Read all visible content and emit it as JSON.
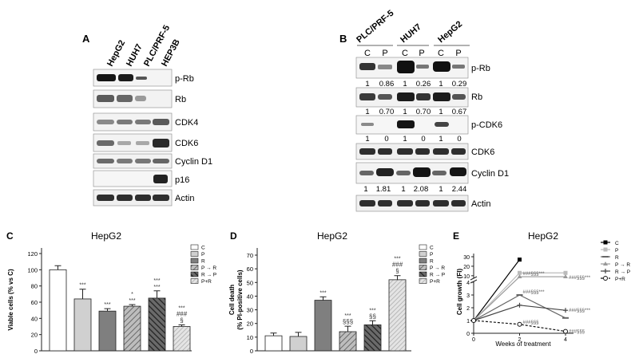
{
  "panel_a": {
    "letter": "A",
    "lanes": [
      "HepG2",
      "HUH7",
      "PLC/PRF-5",
      "HEP3B"
    ],
    "rows": [
      "p-Rb",
      "Rb",
      "CDK4",
      "CDK6",
      "Cyclin D1",
      "p16",
      "Actin"
    ]
  },
  "panel_b": {
    "letter": "B",
    "cell_lines": [
      "PLC/PRF-5",
      "HUH7",
      "HepG2"
    ],
    "lane_labels": [
      "C",
      "P",
      "C",
      "P",
      "C",
      "P"
    ],
    "rows": [
      "p-Rb",
      "Rb",
      "p-CDK6",
      "CDK6",
      "Cyclin D1",
      "Actin"
    ],
    "quant": {
      "p-Rb": [
        "1",
        "0.86",
        "1",
        "0.26",
        "1",
        "0.29"
      ],
      "Rb": [
        "1",
        "0.70",
        "1",
        "0.70",
        "1",
        "0.67"
      ],
      "p-CDK6": [
        "1",
        "0",
        "1",
        "0",
        "1",
        "0"
      ],
      "Cyclin D1": [
        "1",
        "1.81",
        "1",
        "2.08",
        "1",
        "2.44"
      ]
    }
  },
  "legend_items": [
    "C",
    "P",
    "R",
    "P → R",
    "R → P",
    "P+R"
  ],
  "colors": {
    "C": "#ffffff",
    "P": "#d0d0d0",
    "R": "#7f7f7f",
    "PR_seq": "#9a9a9a",
    "RP_seq": "#404040",
    "PplusR": "#c4c4c4"
  },
  "chart_data": [
    {
      "panel": "C",
      "type": "bar",
      "title": "HepG2",
      "ylabel": "Viable cells (% vs C)",
      "ylim": [
        0,
        120
      ],
      "yticks": [
        "0",
        "20",
        "40",
        "60",
        "80",
        "100",
        "120"
      ],
      "categories": [
        "C",
        "P",
        "R",
        "P → R",
        "R → P",
        "P+R"
      ],
      "values": [
        100,
        64,
        49,
        55,
        65,
        30
      ],
      "errors": [
        5,
        12,
        3,
        2,
        9,
        2
      ],
      "annotations": [
        [],
        [
          "***"
        ],
        [
          "***"
        ],
        [
          "***",
          "*"
        ],
        [
          "***",
          "***"
        ],
        [
          "§",
          "###",
          "***"
        ]
      ]
    },
    {
      "panel": "D",
      "type": "bar",
      "title": "HepG2",
      "ylabel": "Cell death (% PI-positive cells)",
      "ylim": [
        0,
        70
      ],
      "yticks": [
        "0",
        "10",
        "20",
        "30",
        "40",
        "50",
        "60",
        "70"
      ],
      "categories": [
        "C",
        "P",
        "R",
        "P → R",
        "R → P",
        "P+R"
      ],
      "values": [
        11,
        10.5,
        37,
        14,
        19,
        52
      ],
      "errors": [
        2,
        3,
        2.5,
        4,
        3,
        3
      ],
      "annotations": [
        [],
        [],
        [
          "***"
        ],
        [
          "§§§",
          "***"
        ],
        [
          "§§",
          "***"
        ],
        [
          "§",
          "###",
          "***"
        ]
      ]
    },
    {
      "panel": "E",
      "type": "line",
      "title": "HepG2",
      "xlabel": "Weeks of treatment",
      "ylabel": "Cell growth (FI)",
      "x": [
        0,
        2,
        4
      ],
      "xticks": [
        "0",
        "2",
        "4"
      ],
      "yticks_lower": [
        "0",
        "1",
        "2",
        "3",
        "4"
      ],
      "yticks_upper": [
        "10",
        "20",
        "30"
      ],
      "series": [
        {
          "name": "C",
          "values": [
            1,
            27,
            null
          ]
        },
        {
          "name": "P",
          "values": [
            1,
            13,
            13
          ]
        },
        {
          "name": "R",
          "values": [
            1,
            3,
            1.2
          ]
        },
        {
          "name": "P → R",
          "values": [
            1,
            9,
            9
          ]
        },
        {
          "name": "R → P",
          "values": [
            1,
            2.2,
            1.8
          ]
        },
        {
          "name": "P+R",
          "values": [
            1,
            0.7,
            0.15
          ]
        }
      ],
      "annotations": [
        {
          "text": "###§§§***",
          "near": "P → R at week 2"
        },
        {
          "text": "###§§§***",
          "near": "P → R at week 4"
        },
        {
          "text": "###§§§***",
          "near": "R at week 2"
        },
        {
          "text": "###§§§***",
          "near": "R → P at week 4"
        },
        {
          "text": "###§§§",
          "near": "P+R at week 2"
        },
        {
          "text": "###§§§",
          "near": "P+R at week 4"
        }
      ]
    }
  ]
}
